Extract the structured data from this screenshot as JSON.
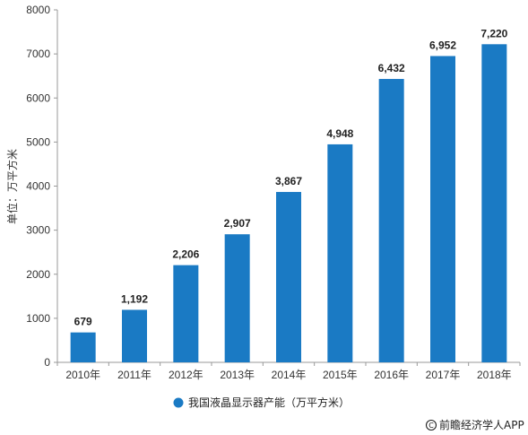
{
  "chart_data": {
    "type": "bar",
    "categories": [
      "2010年",
      "2011年",
      "2012年",
      "2013年",
      "2014年",
      "2015年",
      "2016年",
      "2017年",
      "2018年"
    ],
    "series": [
      {
        "name": "我国液晶显示器产能（万平方米）",
        "values": [
          679,
          1192,
          2206,
          2907,
          3867,
          4948,
          6432,
          6952,
          7220
        ],
        "data_labels": [
          "679",
          "1,192",
          "2,206",
          "2,907",
          "3,867",
          "4,948",
          "6,432",
          "6,952",
          "7,220"
        ],
        "color": "#1a7ac4"
      }
    ],
    "ylabel": "单位：万平方米",
    "ylim": [
      0,
      8000
    ],
    "yticks": [
      "0",
      "1000",
      "2000",
      "3000",
      "4000",
      "5000",
      "6000",
      "7000",
      "8000"
    ],
    "grid": false,
    "legend_position": "bottom"
  },
  "source": "前瞻经济学人APP",
  "source_icon": "copyright-icon"
}
